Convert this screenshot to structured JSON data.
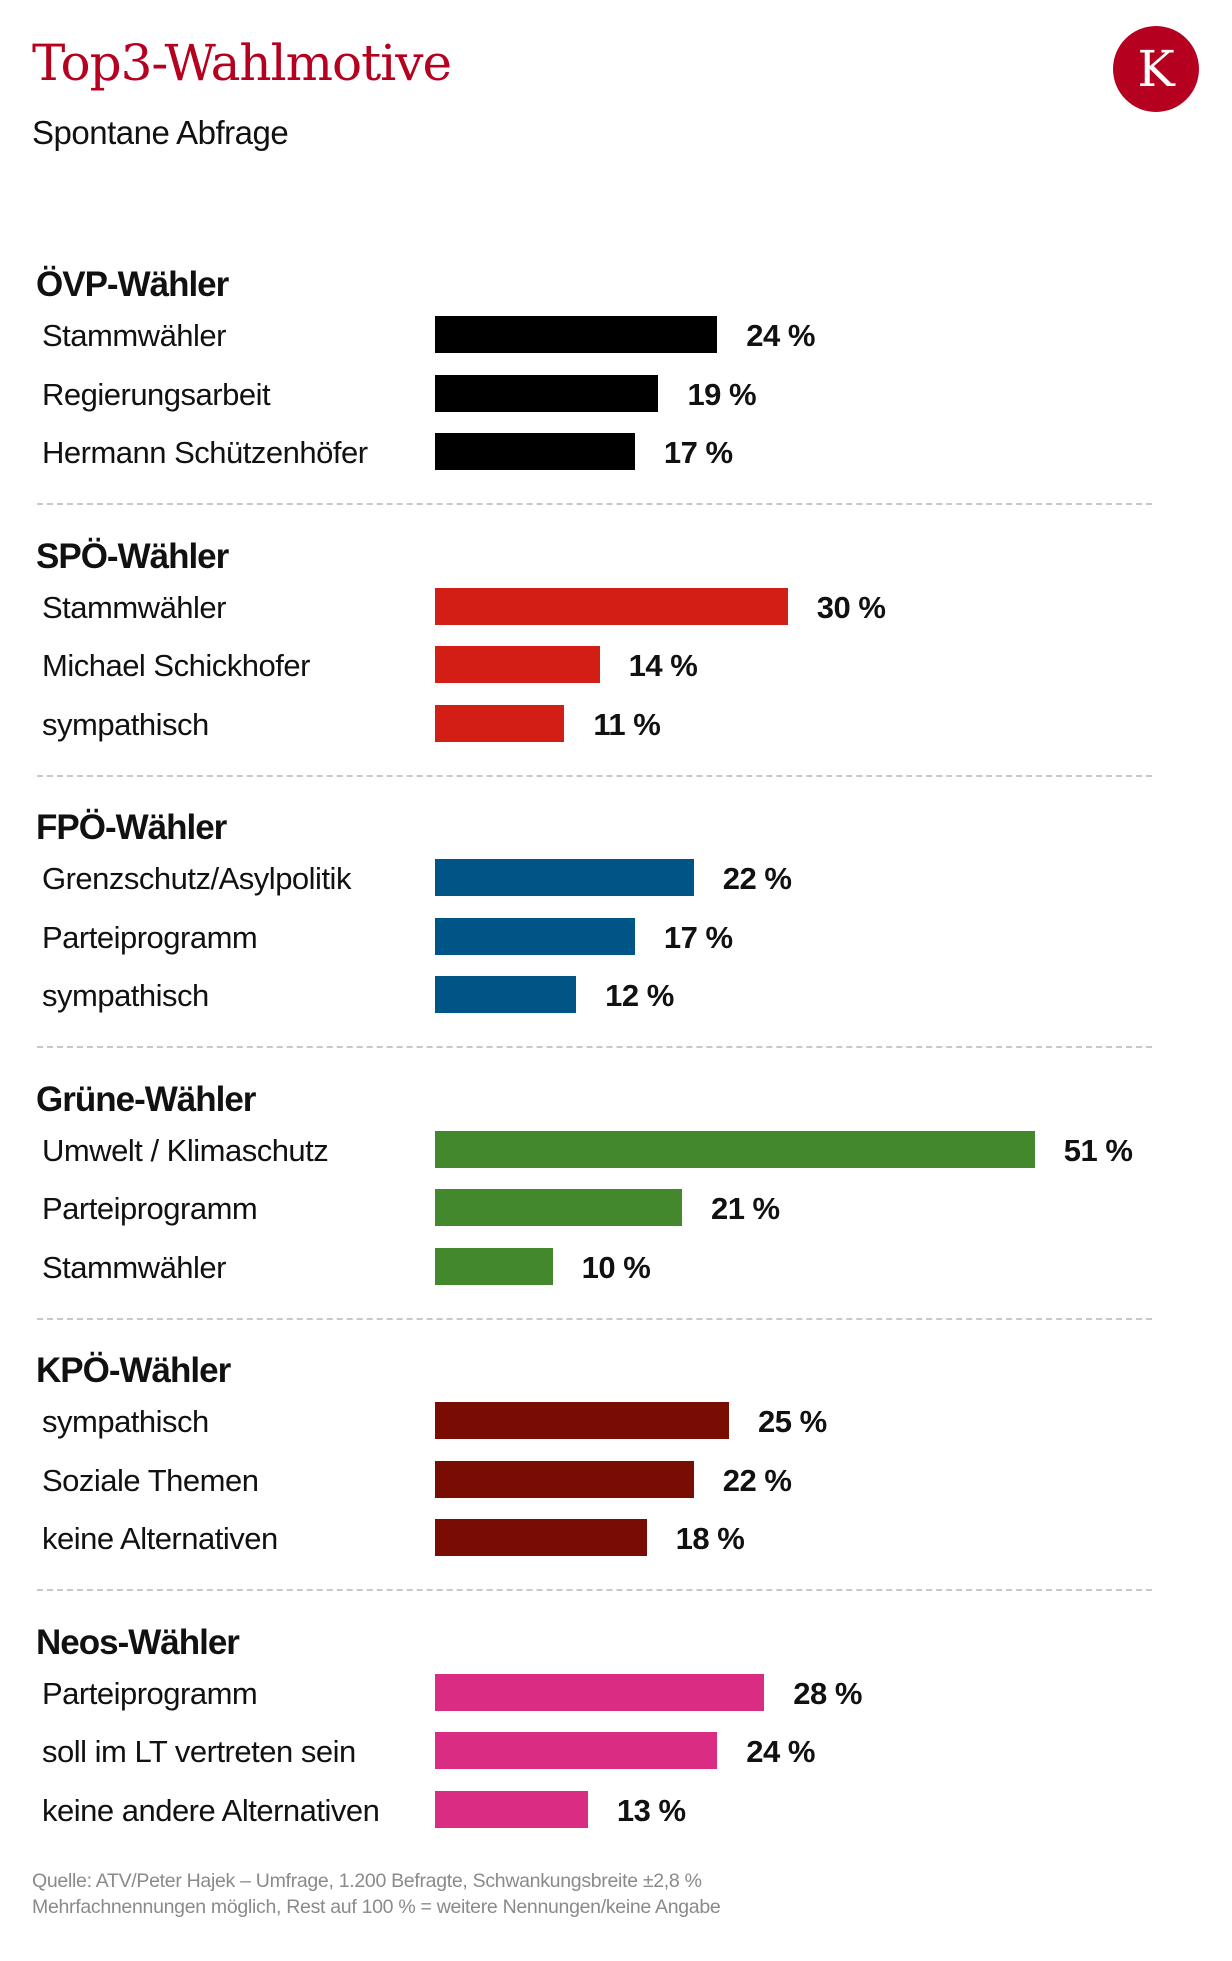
{
  "title": "Top3-Wahlmotive",
  "subtitle": "Spontane Abfrage",
  "logo": {
    "letter": "K",
    "color": "#b5001f"
  },
  "footer": {
    "source": "Quelle: ATV/Peter Hajek – Umfrage, 1.200 Befragte, Schwankungsbreite ±2,8 %",
    "note": "Mehrfachnennungen möglich, Rest auf 100 % = weitere Nennungen/keine Angabe"
  },
  "chart_data": {
    "type": "bar",
    "orientation": "horizontal",
    "unit": "%",
    "xlim": [
      0,
      100
    ],
    "grid": false,
    "groups": [
      {
        "name": "ÖVP-Wähler",
        "color": "#000000",
        "categories": [
          "Stammwähler",
          "Regierungsarbeit",
          "Hermann Schützenhöfer"
        ],
        "values": [
          24,
          19,
          17
        ],
        "labels": [
          "24 %",
          "19 %",
          "17 %"
        ]
      },
      {
        "name": "SPÖ-Wähler",
        "color": "#d21e14",
        "categories": [
          "Stammwähler",
          "Michael Schickhofer",
          "sympathisch"
        ],
        "values": [
          30,
          14,
          11
        ],
        "labels": [
          "30 %",
          "14 %",
          "11 %"
        ]
      },
      {
        "name": "FPÖ-Wähler",
        "color": "#005587",
        "categories": [
          "Grenzschutz/Asylpolitik",
          "Parteiprogramm",
          "sympathisch"
        ],
        "values": [
          22,
          17,
          12
        ],
        "labels": [
          "22 %",
          "17 %",
          "12 %"
        ]
      },
      {
        "name": "Grüne-Wähler",
        "color": "#43882c",
        "categories": [
          "Umwelt / Klimaschutz",
          "Parteiprogramm",
          "Stammwähler"
        ],
        "values": [
          51,
          21,
          10
        ],
        "labels": [
          "51 %",
          "21 %",
          "10 %"
        ]
      },
      {
        "name": "KPÖ-Wähler",
        "color": "#7a0d03",
        "categories": [
          "sympathisch",
          "Soziale Themen",
          "keine Alternativen"
        ],
        "values": [
          25,
          22,
          18
        ],
        "labels": [
          "25 %",
          "22 %",
          "18 %"
        ]
      },
      {
        "name": "Neos-Wähler",
        "color": "#d92c82",
        "categories": [
          "Parteiprogramm",
          "soll im LT vertreten sein",
          "keine andere Alternativen"
        ],
        "values": [
          28,
          24,
          13
        ],
        "labels": [
          "28 %",
          "24 %",
          "13 %"
        ]
      }
    ]
  }
}
